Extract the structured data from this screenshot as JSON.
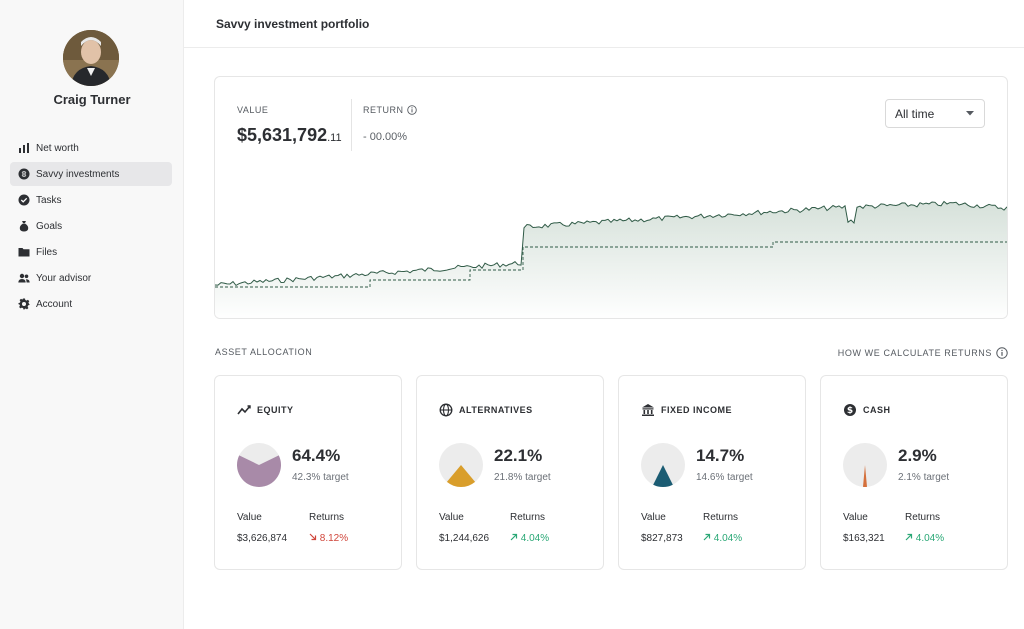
{
  "user": {
    "name": "Craig Turner"
  },
  "nav": [
    {
      "label": "Net worth",
      "icon": "bar-chart-icon",
      "active": false
    },
    {
      "label": "Savvy investments",
      "icon": "savvy-logo-icon",
      "active": true
    },
    {
      "label": "Tasks",
      "icon": "check-circle-icon",
      "active": false
    },
    {
      "label": "Goals",
      "icon": "money-bag-icon",
      "active": false
    },
    {
      "label": "Files",
      "icon": "folder-icon",
      "active": false
    },
    {
      "label": "Your advisor",
      "icon": "people-icon",
      "active": false
    },
    {
      "label": "Account",
      "icon": "gear-icon",
      "active": false
    }
  ],
  "header": {
    "title": "Savvy investment portfolio"
  },
  "summary": {
    "value_label": "VALUE",
    "value_main": "$5,631,792",
    "value_cents": ".11",
    "return_label": "RETURN",
    "return_value": "- 00.00%",
    "period": "All time"
  },
  "allocation": {
    "section_label": "ASSET ALLOCATION",
    "how_label": "HOW WE CALCULATE RETURNS",
    "value_col_label": "Value",
    "returns_col_label": "Returns",
    "assets": [
      {
        "name": "EQUITY",
        "icon": "trend-line-icon",
        "percent": "64.4%",
        "fraction": 0.644,
        "target": "42.3% target",
        "value": "$3,626,874",
        "returns": "8.12%",
        "direction": "down",
        "color": "#a88aa8"
      },
      {
        "name": "ALTERNATIVES",
        "icon": "globe-icon",
        "percent": "22.1%",
        "fraction": 0.221,
        "target": "21.8% target",
        "value": "$1,244,626",
        "returns": "4.04%",
        "direction": "up",
        "color": "#d99e2b"
      },
      {
        "name": "FIXED INCOME",
        "icon": "bank-icon",
        "percent": "14.7%",
        "fraction": 0.147,
        "target": "14.6% target",
        "value": "$827,873",
        "returns": "4.04%",
        "direction": "up",
        "color": "#1b5c73"
      },
      {
        "name": "CASH",
        "icon": "dollar-coin-icon",
        "percent": "2.9%",
        "fraction": 0.029,
        "target": "2.1% target",
        "value": "$163,321",
        "returns": "4.04%",
        "direction": "up",
        "color": "#d4703c"
      }
    ]
  },
  "colors": {
    "line": "#2f5a46",
    "area": "#dfe7e2",
    "muted": "#e7e7e7"
  }
}
